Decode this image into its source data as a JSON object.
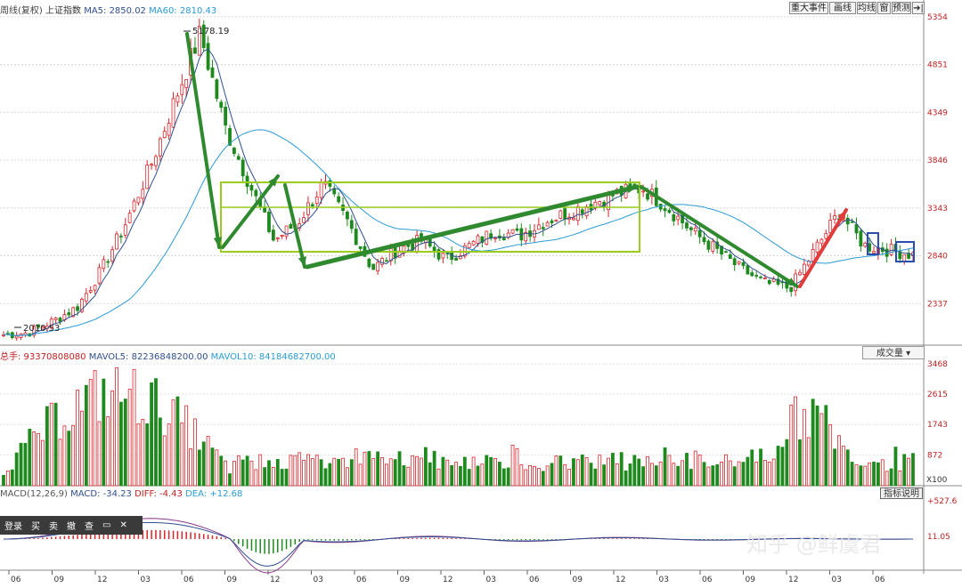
{
  "info_main": {
    "a": "周线(复权)",
    "b": "上证指数",
    "c": "MA5: 2850.02",
    "d": "MA60: 2810.43"
  },
  "info_vol": {
    "a": "总手: 93370808080",
    "b": "MAVOL5: 82236848200.00",
    "c": "MAVOL10: 84184682700.00"
  },
  "info_macd": {
    "a": "MACD(12,26,9)",
    "b": "MACD: -34.23",
    "c": "DIFF: -4.43",
    "d": "DEA: +12.68"
  },
  "toolbar": [
    "重大事件",
    "画线",
    "均线",
    "窗",
    "预测",
    "➔|"
  ],
  "volume_dropdown": "成交量",
  "indicator_button": "指标说明",
  "vol_unit": "X100",
  "annotations": {
    "peak": "5178.19",
    "low": "2010.53"
  },
  "context_menu": [
    "登录",
    "买",
    "卖",
    "撤",
    "查"
  ],
  "watermark": "知乎 @鲜虞君",
  "colors": {
    "up": "#d8262c",
    "down": "#1e8a1e",
    "ma_short": "#2f4f8f",
    "ma_long": "#2a9bd6",
    "box": "#9acd1e",
    "arrow_green": "#2f8a2f",
    "arrow_red": "#e23b3b"
  },
  "chart_data": [
    {
      "type": "candlestick",
      "title": "上证指数",
      "y_ticks": [
        5354,
        4851,
        4349,
        3846,
        3343,
        2840,
        2337
      ],
      "ylim": [
        1900,
        5400
      ],
      "x_ticks": [
        "06",
        "09",
        "12",
        "03",
        "06",
        "09",
        "12",
        "03",
        "06",
        "09",
        "12",
        "03",
        "06",
        "09",
        "12",
        "03",
        "06",
        "09",
        "12",
        "03",
        "06"
      ],
      "close_weekly_approx": [
        2010,
        2030,
        2150,
        2300,
        2700,
        3200,
        3800,
        4500,
        5178,
        4200,
        3600,
        3000,
        3200,
        3600,
        3200,
        2700,
        2900,
        3000,
        2800,
        2950,
        3100,
        3050,
        3200,
        3300,
        3400,
        3500,
        3550,
        3350,
        3100,
        2900,
        2700,
        2550,
        2500,
        2900,
        3300,
        2950,
        2900,
        2850
      ],
      "series": [
        {
          "name": "MA5",
          "value": 2850.02
        },
        {
          "name": "MA60",
          "value": 2810.43
        }
      ],
      "annotations": [
        {
          "label": "5178.19"
        },
        {
          "label": "2010.53"
        }
      ]
    },
    {
      "type": "bar",
      "title": "成交量",
      "y_ticks": [
        3468,
        2615,
        1743,
        872
      ],
      "unit": "X100",
      "series": [
        {
          "name": "MAVOL5",
          "value": 82236848200.0
        },
        {
          "name": "MAVOL10",
          "value": 84184682700.0
        }
      ]
    },
    {
      "type": "bar",
      "title": "MACD(12,26,9)",
      "y_ticks": [
        527.6,
        11.05
      ],
      "series": [
        {
          "name": "MACD",
          "value": -34.23
        },
        {
          "name": "DIFF",
          "value": -4.43
        },
        {
          "name": "DEA",
          "value": 12.68
        }
      ]
    }
  ]
}
